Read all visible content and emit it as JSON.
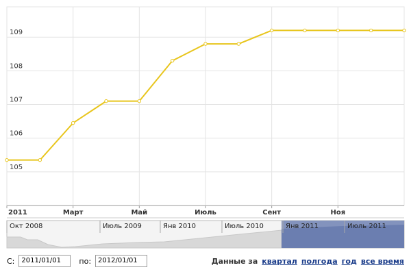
{
  "chart_data": {
    "type": "line",
    "categories": [
      "2011",
      null,
      "Март",
      null,
      "Май",
      null,
      "Июль",
      null,
      "Сент",
      null,
      "Ноя",
      null,
      null
    ],
    "values": [
      105.35,
      105.35,
      106.45,
      107.1,
      107.1,
      108.3,
      108.8,
      108.8,
      109.2,
      109.2,
      109.2,
      109.2,
      109.2
    ],
    "color": "#e8c51c",
    "ylim": [
      104,
      109.9
    ],
    "yticks": [
      105,
      106,
      107,
      108,
      109
    ],
    "grid": true
  },
  "navigator": {
    "labels": [
      "Окт 2008",
      "Июль 2009",
      "Янв 2010",
      "Июль 2010",
      "Янв 2011",
      "Июль 2011"
    ]
  },
  "controls": {
    "from_label": "С:",
    "from_value": "2011/01/01",
    "to_label": "по:",
    "to_value": "2012/01/01",
    "range_label": "Данные за",
    "links": [
      "квартал",
      "полгода",
      "год",
      "все время"
    ]
  }
}
